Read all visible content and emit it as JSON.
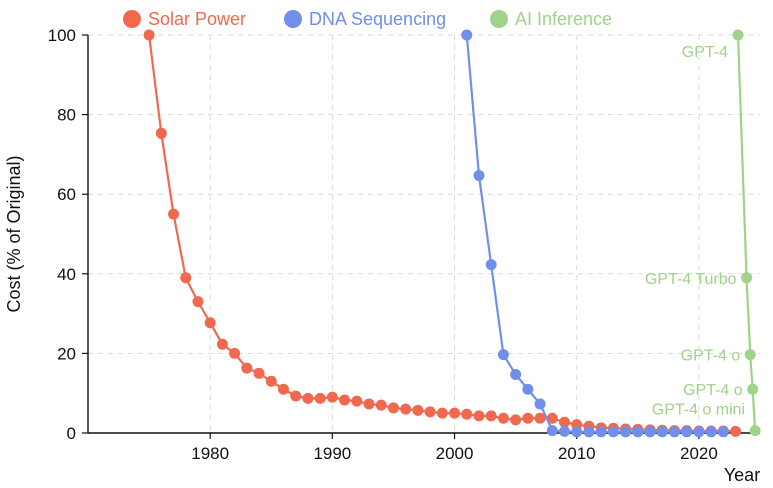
{
  "chart_data": {
    "type": "line",
    "xlabel": "Year",
    "ylabel": "Cost (% of Original)",
    "xlim": [
      1970,
      2025
    ],
    "ylim": [
      0,
      100
    ],
    "xticks": [
      1980,
      1990,
      2000,
      2010,
      2020
    ],
    "yticks": [
      0,
      20,
      40,
      60,
      80,
      100
    ],
    "grid": true,
    "legend_position": "top",
    "series": [
      {
        "name": "Solar Power",
        "color": "#f0694f",
        "x": [
          1975,
          1976,
          1977,
          1978,
          1979,
          1980,
          1981,
          1982,
          1983,
          1984,
          1985,
          1986,
          1987,
          1988,
          1989,
          1990,
          1991,
          1992,
          1993,
          1994,
          1995,
          1996,
          1997,
          1998,
          1999,
          2000,
          2001,
          2002,
          2003,
          2004,
          2005,
          2006,
          2007,
          2008,
          2009,
          2010,
          2011,
          2012,
          2013,
          2014,
          2015,
          2016,
          2017,
          2018,
          2019,
          2020,
          2021,
          2022,
          2023
        ],
        "y": [
          100,
          75.3,
          55,
          39,
          33,
          27.7,
          22.3,
          20,
          16.3,
          15,
          13,
          11,
          9.3,
          8.7,
          8.7,
          9,
          8.3,
          8,
          7.3,
          7,
          6.3,
          6,
          5.7,
          5.3,
          5,
          5,
          4.7,
          4.3,
          4.3,
          3.7,
          3.3,
          3.7,
          3.7,
          3.7,
          2.7,
          2.1,
          1.7,
          1.3,
          1.2,
          1,
          0.9,
          0.8,
          0.7,
          0.6,
          0.6,
          0.5,
          0.5,
          0.5,
          0.4
        ]
      },
      {
        "name": "DNA Sequencing",
        "color": "#6f8fea",
        "x": [
          2001,
          2002,
          2003,
          2004,
          2005,
          2006,
          2007,
          2008,
          2009,
          2010,
          2011,
          2012,
          2013,
          2014,
          2015,
          2016,
          2017,
          2018,
          2019,
          2020,
          2021,
          2022
        ],
        "y": [
          100,
          64.7,
          42.3,
          19.7,
          14.7,
          11,
          7.3,
          0.6,
          0.4,
          0.3,
          0.3,
          0.3,
          0.3,
          0.3,
          0.3,
          0.3,
          0.3,
          0.3,
          0.3,
          0.3,
          0.3,
          0.3
        ]
      },
      {
        "name": "AI Inference",
        "color": "#9fd38a",
        "x": [
          2023.2,
          2023.9,
          2024.2,
          2024.4,
          2024.6
        ],
        "y": [
          100,
          39,
          19.7,
          11,
          0.6
        ],
        "labels": [
          "GPT-4",
          "GPT-4 Turbo",
          "GPT-4 o",
          "GPT-4 o",
          "GPT-4 o mini"
        ]
      }
    ]
  }
}
